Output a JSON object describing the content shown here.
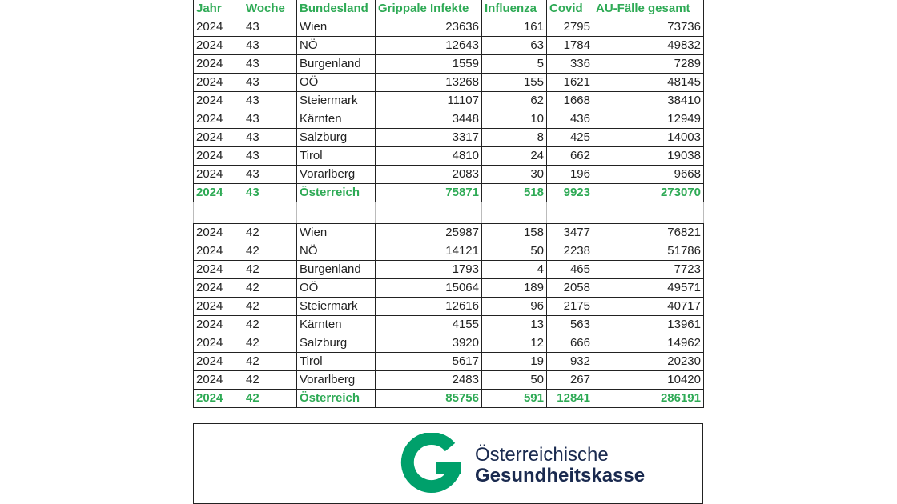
{
  "headers": [
    "Jahr",
    "Woche",
    "Bundesland",
    "Grippale Infekte",
    "Influenza",
    "Covid",
    "AU-Fälle gesamt"
  ],
  "week43": [
    [
      "2024",
      "43",
      "Wien",
      "23636",
      "161",
      "2795",
      "73736"
    ],
    [
      "2024",
      "43",
      "NÖ",
      "12643",
      "63",
      "1784",
      "49832"
    ],
    [
      "2024",
      "43",
      "Burgenland",
      "1559",
      "5",
      "336",
      "7289"
    ],
    [
      "2024",
      "43",
      "OÖ",
      "13268",
      "155",
      "1621",
      "48145"
    ],
    [
      "2024",
      "43",
      "Steiermark",
      "11107",
      "62",
      "1668",
      "38410"
    ],
    [
      "2024",
      "43",
      "Kärnten",
      "3448",
      "10",
      "436",
      "12949"
    ],
    [
      "2024",
      "43",
      "Salzburg",
      "3317",
      "8",
      "425",
      "14003"
    ],
    [
      "2024",
      "43",
      "Tirol",
      "4810",
      "24",
      "662",
      "19038"
    ],
    [
      "2024",
      "43",
      "Vorarlberg",
      "2083",
      "30",
      "196",
      "9668"
    ],
    [
      "2024",
      "43",
      "Österreich",
      "75871",
      "518",
      "9923",
      "273070"
    ]
  ],
  "week42": [
    [
      "2024",
      "42",
      "Wien",
      "25987",
      "158",
      "3477",
      "76821"
    ],
    [
      "2024",
      "42",
      "NÖ",
      "14121",
      "50",
      "2238",
      "51786"
    ],
    [
      "2024",
      "42",
      "Burgenland",
      "1793",
      "4",
      "465",
      "7723"
    ],
    [
      "2024",
      "42",
      "OÖ",
      "15064",
      "189",
      "2058",
      "49571"
    ],
    [
      "2024",
      "42",
      "Steiermark",
      "12616",
      "96",
      "2175",
      "40717"
    ],
    [
      "2024",
      "42",
      "Kärnten",
      "4155",
      "13",
      "563",
      "13961"
    ],
    [
      "2024",
      "42",
      "Salzburg",
      "3920",
      "12",
      "666",
      "14962"
    ],
    [
      "2024",
      "42",
      "Tirol",
      "5617",
      "19",
      "932",
      "20230"
    ],
    [
      "2024",
      "42",
      "Vorarlberg",
      "2483",
      "50",
      "267",
      "10420"
    ],
    [
      "2024",
      "42",
      "Österreich",
      "85756",
      "591",
      "12841",
      "286191"
    ]
  ],
  "logo": {
    "line1": "Österreichische",
    "line2": "Gesundheitskasse"
  },
  "colors": {
    "header_green": "#2eaa55",
    "logo_green": "#00a06b",
    "logo_navy": "#1a2a4f"
  }
}
